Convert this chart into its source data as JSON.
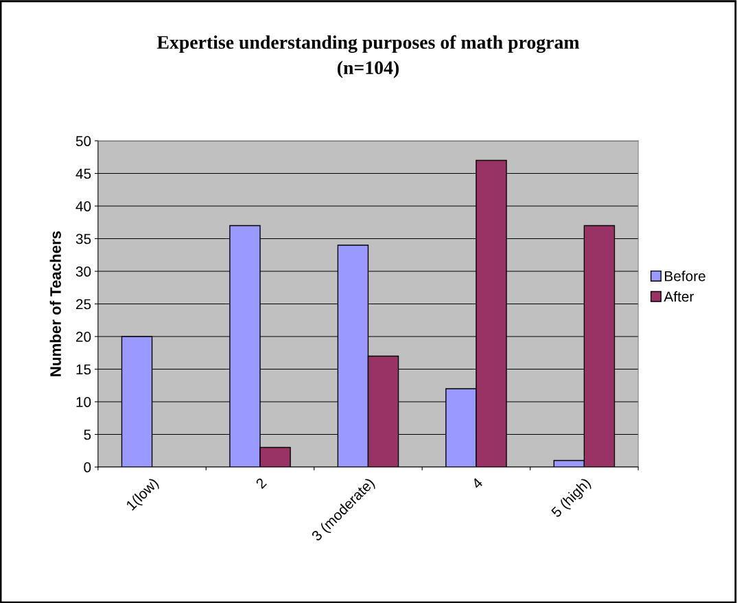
{
  "chart_data": {
    "type": "bar",
    "title": "Expertise understanding purposes of math program\n(n=104)",
    "ylabel": "Number of Teachers",
    "categories": [
      "1(low)",
      "2",
      "3 (moderate)",
      "4",
      "5 (high)"
    ],
    "series": [
      {
        "name": "Before",
        "color": "#9999ff",
        "values": [
          20,
          37,
          34,
          12,
          1
        ]
      },
      {
        "name": "After",
        "color": "#993366",
        "values": [
          null,
          3,
          17,
          47,
          37
        ]
      }
    ],
    "ylim": [
      0,
      50
    ],
    "yticks": [
      0,
      5,
      10,
      15,
      20,
      25,
      30,
      35,
      40,
      45,
      50
    ],
    "grid": "y",
    "legend": "right"
  }
}
